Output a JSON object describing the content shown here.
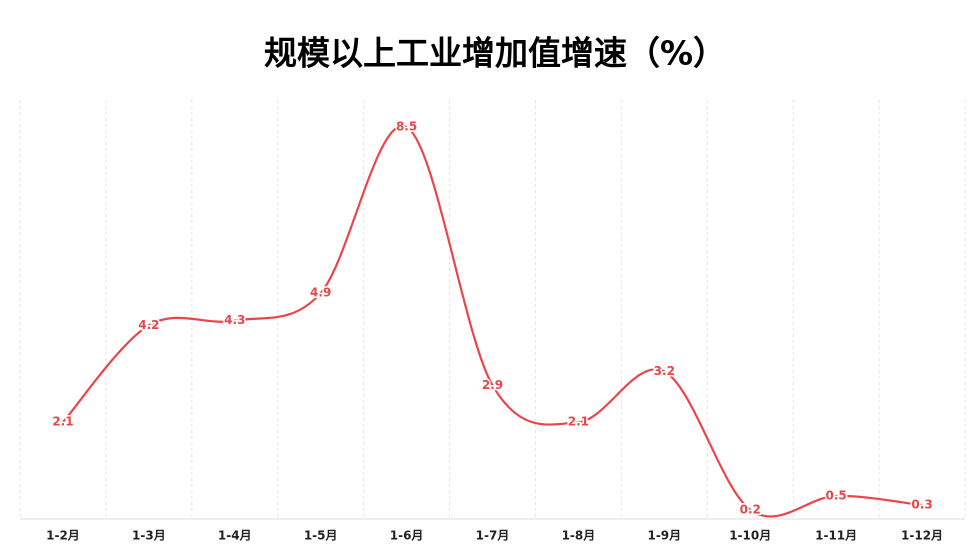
{
  "chart_data": {
    "type": "line",
    "title": "规模以上工业增加值增速（%）",
    "categories": [
      "1-2月",
      "1-3月",
      "1-4月",
      "1-5月",
      "1-6月",
      "1-7月",
      "1-8月",
      "1-9月",
      "1-10月",
      "1-11月",
      "1-12月"
    ],
    "values": [
      2.1,
      4.2,
      4.3,
      4.9,
      8.5,
      2.9,
      2.1,
      3.2,
      0.2,
      0.5,
      0.3
    ],
    "color": "#e8464a",
    "ylim": [
      0,
      9
    ],
    "smooth": true,
    "grid": true
  }
}
